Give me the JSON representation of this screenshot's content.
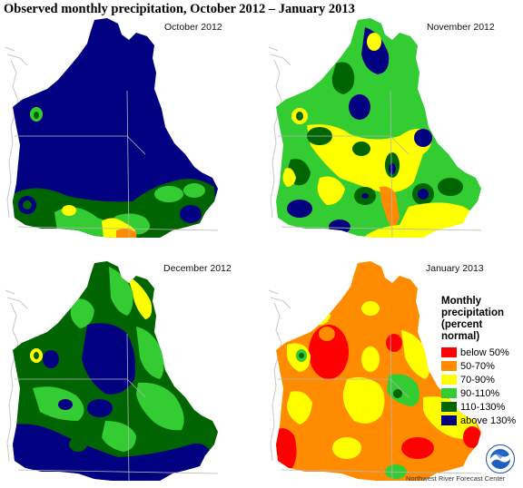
{
  "title": "Observed monthly precipitation, October 2012 – January 2013",
  "panels": [
    {
      "label": "October 2012"
    },
    {
      "label": "November 2012"
    },
    {
      "label": "December 2012"
    },
    {
      "label": "January 2013"
    }
  ],
  "legend": {
    "title_line1": "Monthly",
    "title_line2": "precipitation",
    "title_line3": "(percent normal)",
    "items": [
      {
        "label": "below 50%",
        "color": "#ff0000"
      },
      {
        "label": "50-70%",
        "color": "#ff8c00"
      },
      {
        "label": "70-90%",
        "color": "#ffff00"
      },
      {
        "label": "90-110%",
        "color": "#33cc33"
      },
      {
        "label": "110-130%",
        "color": "#006400"
      },
      {
        "label": "above 130%",
        "color": "#000080"
      }
    ]
  },
  "credit": "Northwest River Forecast Center",
  "logo_icon": "noaa-logo-icon"
}
